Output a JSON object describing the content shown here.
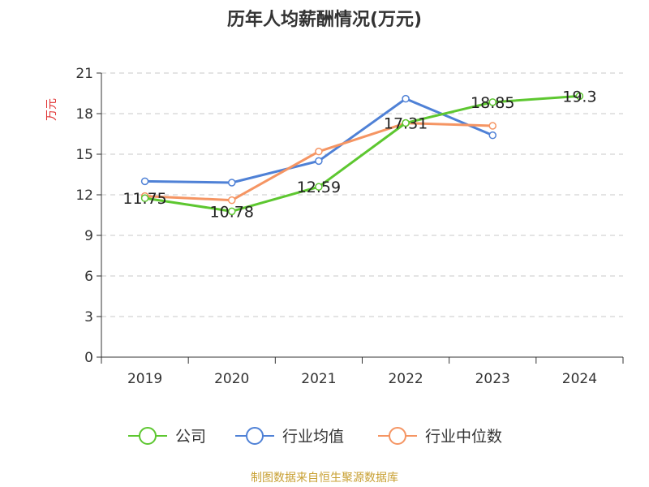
{
  "chart_data": {
    "type": "line",
    "title": "历年人均薪酬情况(万元)",
    "ylabel": "万元",
    "xlabel": "",
    "categories": [
      "2019",
      "2020",
      "2021",
      "2022",
      "2023",
      "2024"
    ],
    "ylim": [
      0,
      21
    ],
    "yticks": [
      0,
      3,
      6,
      9,
      12,
      15,
      18,
      21
    ],
    "grid": true,
    "legend_position": "bottom",
    "series": [
      {
        "name": "公司",
        "color": "#5dc730",
        "values": [
          11.75,
          10.78,
          12.59,
          17.31,
          18.85,
          19.3
        ],
        "labels": [
          "11.75",
          "10.78",
          "12.59",
          "17.31",
          "18.85",
          "19.3"
        ]
      },
      {
        "name": "行业均值",
        "color": "#4f81d6",
        "values": [
          13.0,
          12.9,
          14.5,
          19.1,
          16.4,
          null
        ]
      },
      {
        "name": "行业中位数",
        "color": "#f59563",
        "values": [
          11.9,
          11.6,
          15.2,
          17.3,
          17.1,
          null
        ]
      }
    ]
  },
  "footer": {
    "source": "制图数据来自恒生聚源数据库"
  }
}
